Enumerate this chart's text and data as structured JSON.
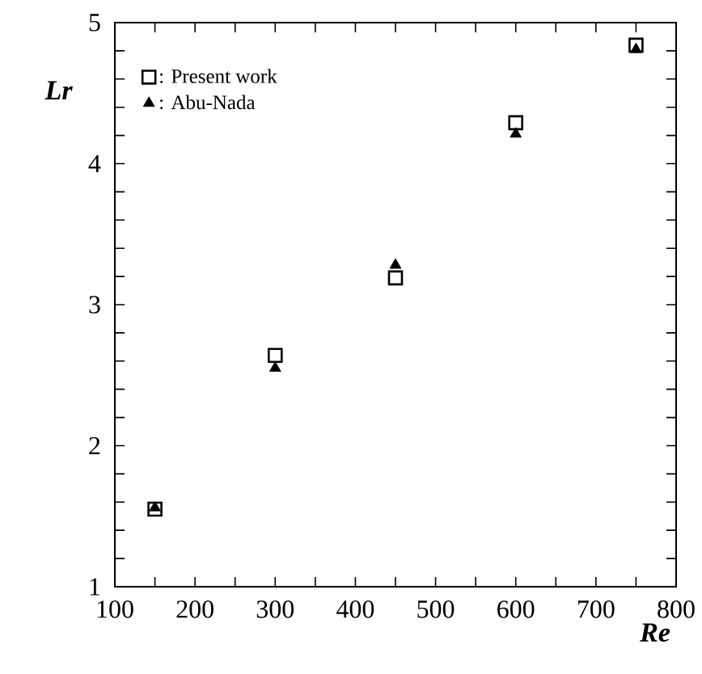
{
  "chart_data": {
    "type": "scatter",
    "xlabel": "Re",
    "ylabel": "Lr",
    "xlim": [
      100,
      800
    ],
    "xticks": [
      100,
      {
        "value": 150,
        "label": null
      },
      200,
      {
        "value": 250,
        "label": null
      },
      300,
      {
        "value": 350,
        "label": null
      },
      400,
      {
        "value": 450,
        "label": null
      },
      500,
      {
        "value": 550,
        "label": null
      },
      600,
      {
        "value": 650,
        "label": null
      },
      700,
      {
        "value": 750,
        "label": null
      },
      800
    ],
    "ylim": [
      1,
      5
    ],
    "yticks": [
      1,
      {
        "value": 1.2,
        "label": null
      },
      {
        "value": 1.4,
        "label": null
      },
      {
        "value": 1.6,
        "label": null
      },
      {
        "value": 1.8,
        "label": null
      },
      2,
      {
        "value": 2.2,
        "label": null
      },
      {
        "value": 2.4,
        "label": null
      },
      {
        "value": 2.6,
        "label": null
      },
      {
        "value": 2.8,
        "label": null
      },
      3,
      {
        "value": 3.2,
        "label": null
      },
      {
        "value": 3.4,
        "label": null
      },
      {
        "value": 3.6,
        "label": null
      },
      {
        "value": 3.8,
        "label": null
      },
      4,
      {
        "value": 4.2,
        "label": null
      },
      {
        "value": 4.4,
        "label": null
      },
      {
        "value": 4.6,
        "label": null
      },
      {
        "value": 4.8,
        "label": null
      },
      5
    ],
    "grid": false,
    "legend": "top left",
    "series": [
      {
        "name": ": Present work",
        "color": "#000000",
        "marker": "square",
        "x": [
          150,
          300,
          450,
          600,
          750
        ],
        "values": [
          1.55,
          2.64,
          3.19,
          4.29,
          4.84
        ]
      },
      {
        "name": ": Abu-Nada",
        "color": "#000000",
        "marker": "triangle",
        "x": [
          150,
          300,
          450,
          600,
          750
        ],
        "values": [
          1.56,
          2.55,
          3.28,
          4.21,
          4.81
        ]
      }
    ]
  }
}
